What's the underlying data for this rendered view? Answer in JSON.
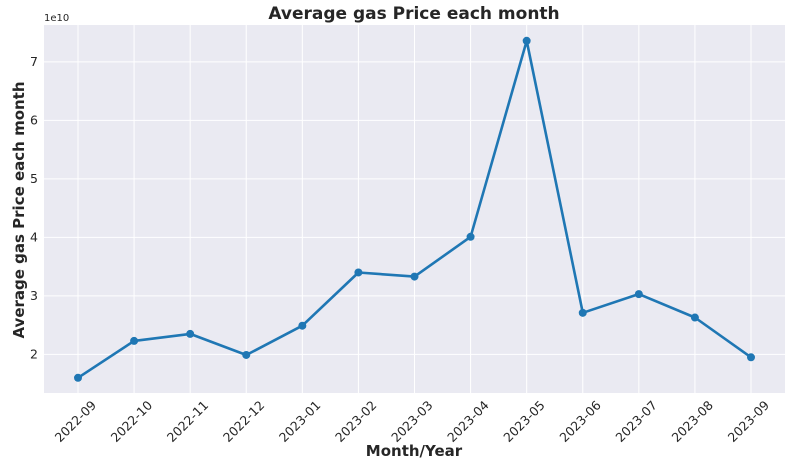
{
  "chart_data": {
    "type": "line",
    "title": "Average gas Price each month",
    "xlabel": "Month/Year",
    "ylabel": "Average gas Price each month",
    "y_offset_label": "1e10",
    "y_scale": 10000000000,
    "categories": [
      "2022-09",
      "2022-10",
      "2022-11",
      "2022-12",
      "2023-01",
      "2023-02",
      "2023-03",
      "2023-04",
      "2023-05",
      "2023-06",
      "2023-07",
      "2023-08",
      "2023-09"
    ],
    "series": [
      {
        "values": [
          16000000000,
          22300000000,
          23500000000,
          19900000000,
          24900000000,
          34000000000,
          33300000000,
          40100000000,
          73600000000,
          27100000000,
          30300000000,
          26300000000,
          19500000000
        ],
        "color": "#1f77b4"
      }
    ],
    "yticks": [
      2,
      3,
      4,
      5,
      6,
      7
    ],
    "ylim": [
      13400000000,
      76300000000
    ],
    "grid": true,
    "legend": "none",
    "background": "#eaeaf2"
  }
}
